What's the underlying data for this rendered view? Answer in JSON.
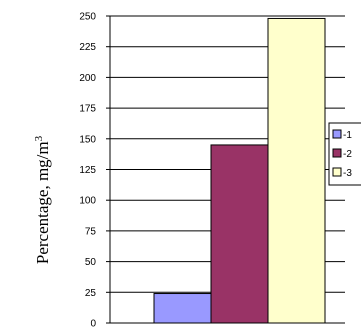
{
  "chart_data": {
    "type": "bar",
    "ylabel_text": "Percentage,  mg/m",
    "ylabel_superscript": "3",
    "ylim": [
      0,
      250
    ],
    "yticks": [
      "0",
      "25",
      "50",
      "75",
      "100",
      "125",
      "150",
      "175",
      "200",
      "225",
      "250"
    ],
    "grid": true,
    "legend_position": "right",
    "series": [
      {
        "label": "-1",
        "value": 24,
        "color": "#9999ff"
      },
      {
        "label": "-2",
        "value": 145,
        "color": "#993366"
      },
      {
        "label": "-3",
        "value": 248,
        "color": "#ffffcc"
      }
    ]
  }
}
